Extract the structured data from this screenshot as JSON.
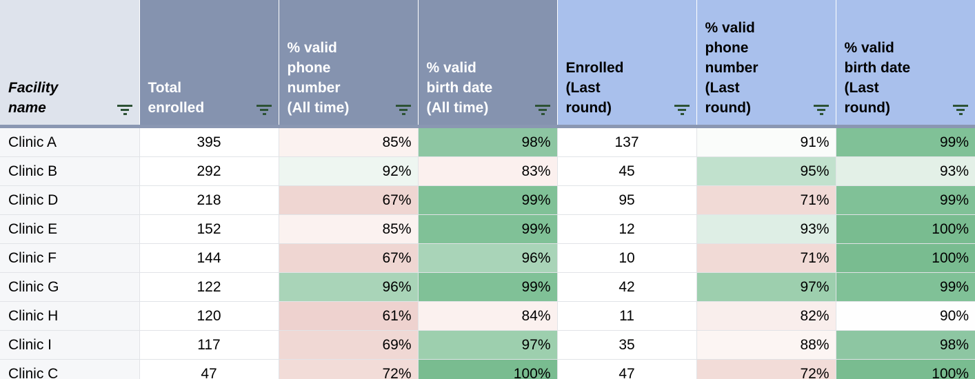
{
  "colors": {
    "header_slate_bg": "#8593af",
    "header_blue_bg": "#a9c0ec",
    "header_facility_bg": "#dee3ec",
    "header_divider": "#8a97b2",
    "filter_icon": "#2d5234",
    "table_bottom_rule": "#2d7030",
    "gridline": "#e1e3e7",
    "scale_green_max": "#79bc90",
    "scale_red_min": "#eed2cf"
  },
  "table": {
    "headers": [
      {
        "id": "facility-name",
        "label": "Facility\nname",
        "bg": "#dee3ec",
        "fg": "#000000"
      },
      {
        "id": "total-enrolled",
        "label": "Total\nenrolled",
        "bg": "#8593af",
        "fg": "#ffffff"
      },
      {
        "id": "phone-all-time",
        "label": "% valid\nphone\nnumber\n(All time)",
        "bg": "#8593af",
        "fg": "#ffffff"
      },
      {
        "id": "birth-all-time",
        "label": "% valid\nbirth date\n(All time)",
        "bg": "#8593af",
        "fg": "#ffffff"
      },
      {
        "id": "enrolled-last-round",
        "label": "Enrolled\n(Last\nround)",
        "bg": "#a9c0ec",
        "fg": "#000000"
      },
      {
        "id": "phone-last-round",
        "label": "% valid\nphone\nnumber\n(Last\nround)",
        "bg": "#a9c0ec",
        "fg": "#000000"
      },
      {
        "id": "birth-last-round",
        "label": "% valid\nbirth date\n(Last\nround)",
        "bg": "#a9c0ec",
        "fg": "#000000"
      }
    ],
    "rows": [
      {
        "cells": [
          {
            "v": "Clinic A",
            "bg": "#f6f7f9"
          },
          {
            "v": "395",
            "bg": "#ffffff"
          },
          {
            "v": "85%",
            "bg": "#fbf2f0"
          },
          {
            "v": "98%",
            "bg": "#8dc6a2"
          },
          {
            "v": "137",
            "bg": "#ffffff"
          },
          {
            "v": "91%",
            "bg": "#fafcfa"
          },
          {
            "v": "99%",
            "bg": "#80c197"
          }
        ]
      },
      {
        "cells": [
          {
            "v": "Clinic B",
            "bg": "#f6f7f9"
          },
          {
            "v": "292",
            "bg": "#ffffff"
          },
          {
            "v": "92%",
            "bg": "#eef6f1"
          },
          {
            "v": "83%",
            "bg": "#fbf0ee"
          },
          {
            "v": "45",
            "bg": "#ffffff"
          },
          {
            "v": "95%",
            "bg": "#c1e1cd"
          },
          {
            "v": "93%",
            "bg": "#e3f0e7"
          }
        ]
      },
      {
        "cells": [
          {
            "v": "Clinic D",
            "bg": "#f6f7f9"
          },
          {
            "v": "218",
            "bg": "#ffffff"
          },
          {
            "v": "67%",
            "bg": "#efd6d2"
          },
          {
            "v": "99%",
            "bg": "#80c197"
          },
          {
            "v": "95",
            "bg": "#ffffff"
          },
          {
            "v": "71%",
            "bg": "#f1dad6"
          },
          {
            "v": "99%",
            "bg": "#80c197"
          }
        ]
      },
      {
        "cells": [
          {
            "v": "Clinic E",
            "bg": "#f6f7f9"
          },
          {
            "v": "152",
            "bg": "#ffffff"
          },
          {
            "v": "85%",
            "bg": "#fbf2f0"
          },
          {
            "v": "99%",
            "bg": "#80c197"
          },
          {
            "v": "12",
            "bg": "#ffffff"
          },
          {
            "v": "93%",
            "bg": "#deeee5"
          },
          {
            "v": "100%",
            "bg": "#79bc90"
          }
        ]
      },
      {
        "cells": [
          {
            "v": "Clinic F",
            "bg": "#f6f7f9"
          },
          {
            "v": "144",
            "bg": "#ffffff"
          },
          {
            "v": "67%",
            "bg": "#efd6d2"
          },
          {
            "v": "96%",
            "bg": "#a9d4b8"
          },
          {
            "v": "10",
            "bg": "#ffffff"
          },
          {
            "v": "71%",
            "bg": "#f1dad6"
          },
          {
            "v": "100%",
            "bg": "#79bc90"
          }
        ]
      },
      {
        "cells": [
          {
            "v": "Clinic G",
            "bg": "#f6f7f9"
          },
          {
            "v": "122",
            "bg": "#ffffff"
          },
          {
            "v": "96%",
            "bg": "#a9d4b8"
          },
          {
            "v": "99%",
            "bg": "#80c197"
          },
          {
            "v": "42",
            "bg": "#ffffff"
          },
          {
            "v": "97%",
            "bg": "#9dcfae"
          },
          {
            "v": "99%",
            "bg": "#80c197"
          }
        ]
      },
      {
        "cells": [
          {
            "v": "Clinic H",
            "bg": "#f6f7f9"
          },
          {
            "v": "120",
            "bg": "#ffffff"
          },
          {
            "v": "61%",
            "bg": "#eed2cf"
          },
          {
            "v": "84%",
            "bg": "#fbf1ef"
          },
          {
            "v": "11",
            "bg": "#ffffff"
          },
          {
            "v": "82%",
            "bg": "#f9eeec"
          },
          {
            "v": "90%",
            "bg": "#fefefe"
          }
        ]
      },
      {
        "cells": [
          {
            "v": "Clinic I",
            "bg": "#f6f7f9"
          },
          {
            "v": "117",
            "bg": "#ffffff"
          },
          {
            "v": "69%",
            "bg": "#f0d8d4"
          },
          {
            "v": "97%",
            "bg": "#9dcfae"
          },
          {
            "v": "35",
            "bg": "#ffffff"
          },
          {
            "v": "88%",
            "bg": "#fcf5f3"
          },
          {
            "v": "98%",
            "bg": "#8dc6a2"
          }
        ]
      },
      {
        "cells": [
          {
            "v": "Clinic C",
            "bg": "#f6f7f9"
          },
          {
            "v": "47",
            "bg": "#ffffff"
          },
          {
            "v": "72%",
            "bg": "#f2dcd8"
          },
          {
            "v": "100%",
            "bg": "#79bc90"
          },
          {
            "v": "47",
            "bg": "#ffffff"
          },
          {
            "v": "72%",
            "bg": "#f2dcd8"
          },
          {
            "v": "100%",
            "bg": "#79bc90"
          }
        ]
      }
    ]
  },
  "chart_data": {
    "type": "table",
    "columns": [
      "Facility name",
      "Total enrolled",
      "% valid phone number (All time)",
      "% valid birth date (All time)",
      "Enrolled (Last round)",
      "% valid phone number (Last round)",
      "% valid birth date (Last round)"
    ],
    "rows": [
      [
        "Clinic A",
        395,
        "85%",
        "98%",
        137,
        "91%",
        "99%"
      ],
      [
        "Clinic B",
        292,
        "92%",
        "83%",
        45,
        "95%",
        "93%"
      ],
      [
        "Clinic D",
        218,
        "67%",
        "99%",
        95,
        "71%",
        "99%"
      ],
      [
        "Clinic E",
        152,
        "85%",
        "99%",
        12,
        "93%",
        "100%"
      ],
      [
        "Clinic F",
        144,
        "67%",
        "96%",
        10,
        "71%",
        "100%"
      ],
      [
        "Clinic G",
        122,
        "96%",
        "99%",
        42,
        "97%",
        "99%"
      ],
      [
        "Clinic H",
        120,
        "61%",
        "84%",
        11,
        "82%",
        "90%"
      ],
      [
        "Clinic I",
        117,
        "69%",
        "97%",
        35,
        "88%",
        "98%"
      ],
      [
        "Clinic C",
        47,
        "72%",
        "100%",
        47,
        "72%",
        "100%"
      ]
    ]
  }
}
